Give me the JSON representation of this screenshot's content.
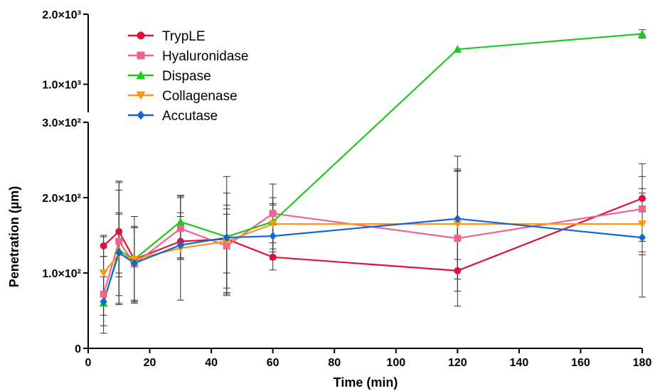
{
  "chart_data": {
    "type": "line",
    "xlabel": "Time (min)",
    "ylabel": "Penetration (µm)",
    "xlim": [
      0,
      180
    ],
    "xticks": [
      0,
      20,
      40,
      60,
      80,
      100,
      120,
      140,
      160,
      180
    ],
    "y_axis_broken": true,
    "y_segments": [
      {
        "range": [
          0,
          300
        ],
        "ticks": [
          0,
          100,
          200,
          300
        ],
        "tick_labels": [
          "0",
          "1.0×10²",
          "2.0×10²",
          "3.0×10²"
        ]
      },
      {
        "range": [
          600,
          2000
        ],
        "ticks": [
          1000,
          2000
        ],
        "tick_labels": [
          "1.0×10³",
          "2.0×10³"
        ]
      }
    ],
    "legend_position": "top-left",
    "x": [
      5,
      10,
      15,
      30,
      45,
      60,
      120,
      180
    ],
    "series": [
      {
        "name": "TrypLE",
        "color": "#dc143c",
        "marker": "circle",
        "values": [
          136,
          155,
          118,
          142,
          145,
          121,
          103,
          199
        ],
        "err_hi": [
          150,
          210,
          160,
          200,
          228,
          190,
          255,
          245
        ],
        "err_lo": [
          122,
          100,
          62,
          118,
          70,
          104,
          56,
          128
        ]
      },
      {
        "name": "Hyaluronidase",
        "color": "#f0648c",
        "marker": "square",
        "values": [
          72,
          142,
          112,
          159,
          136,
          179,
          146,
          185
        ],
        "err_hi": [
          122,
          220,
          175,
          203,
          185,
          218,
          236,
          228
        ],
        "err_lo": [
          44,
          95,
          64,
          118,
          72,
          140,
          76,
          142
        ]
      },
      {
        "name": "Dispase",
        "color": "#1ec81e",
        "marker": "triangle-up",
        "values": [
          60,
          130,
          118,
          168,
          148,
          168,
          1500,
          1720
        ],
        "err_hi": [
          102,
          222,
          160,
          202,
          190,
          200,
          1500,
          1780
        ],
        "err_lo": [
          30,
          60,
          62,
          120,
          100,
          128,
          1500,
          1660
        ]
      },
      {
        "name": "Collagenase",
        "color": "#ff9614",
        "marker": "triangle-down",
        "values": [
          100,
          125,
          118,
          133,
          142,
          165,
          165,
          165
        ],
        "err_hi": [
          148,
          178,
          162,
          175,
          178,
          200,
          235,
          212
        ],
        "err_lo": [
          62,
          58,
          60,
          64,
          74,
          132,
          92,
          68
        ]
      },
      {
        "name": "Accutase",
        "color": "#1464d2",
        "marker": "diamond",
        "values": [
          62,
          127,
          113,
          137,
          147,
          149,
          172,
          147
        ],
        "err_hi": [
          95,
          180,
          160,
          180,
          206,
          192,
          238,
          206
        ],
        "err_lo": [
          20,
          70,
          62,
          120,
          80,
          118,
          118,
          124
        ]
      }
    ]
  }
}
